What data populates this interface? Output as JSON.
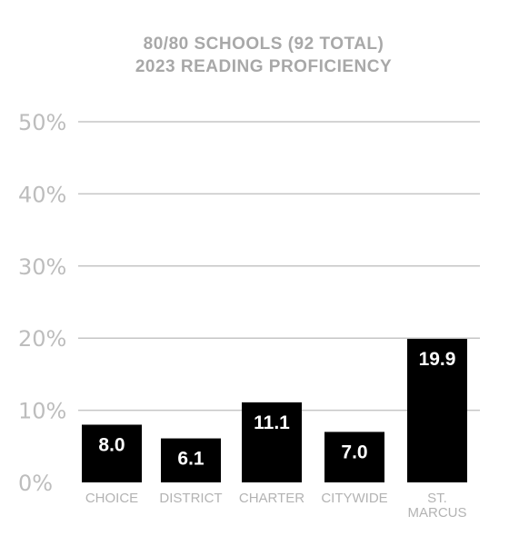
{
  "chart_data": {
    "type": "bar",
    "title": [
      "80/80 SCHOOLS (92 TOTAL)",
      "2023 READING PROFICIENCY"
    ],
    "categories": [
      [
        "CHOICE"
      ],
      [
        "DISTRICT"
      ],
      [
        "CHARTER"
      ],
      [
        "CITYWIDE"
      ],
      [
        "ST.",
        "MARCUS"
      ]
    ],
    "values": [
      8.0,
      6.1,
      11.1,
      7.0,
      19.9
    ],
    "data_labels": [
      "8.0",
      "6.1",
      "11.1",
      "7.0",
      "19.9"
    ],
    "yticks": [
      0,
      10,
      20,
      30,
      40,
      50
    ],
    "ytick_labels": [
      "0%",
      "10%",
      "20%",
      "30%",
      "40%",
      "50%"
    ],
    "ylim": [
      0,
      50
    ],
    "xlabel": "",
    "ylabel": "",
    "grid": true,
    "legend": false,
    "colors": {
      "bar": "#000000",
      "bar_label": "#ffffff",
      "grid": "#c6c6c6",
      "title": "#a8a8a8",
      "tick": "#bdbdbd"
    }
  }
}
